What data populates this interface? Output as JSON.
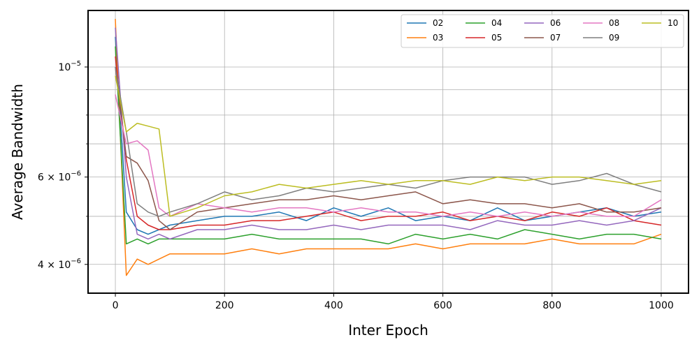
{
  "chart_data": {
    "type": "line",
    "title": "",
    "xlabel": "Inter Epoch",
    "ylabel": "Average Bandwidth",
    "xlim": [
      -50,
      1050
    ],
    "ylim": [
      3.5e-06,
      1.3e-05
    ],
    "yscale": "log",
    "grid": true,
    "legend_position": "top-right",
    "legend_columns": 5,
    "x_ticks": [
      {
        "value": 0,
        "label": "0"
      },
      {
        "value": 200,
        "label": "200"
      },
      {
        "value": 400,
        "label": "400"
      },
      {
        "value": 600,
        "label": "600"
      },
      {
        "value": 800,
        "label": "800"
      },
      {
        "value": 1000,
        "label": "1000"
      }
    ],
    "y_ticks": [
      {
        "value": 4e-06,
        "base": "4 × 10",
        "exp": "−6"
      },
      {
        "value": 6e-06,
        "base": "6 × 10",
        "exp": "−6"
      },
      {
        "value": 1e-05,
        "base": "10",
        "exp": "−5"
      }
    ],
    "y_minor_ticks": [
      5e-06,
      7e-06,
      8e-06,
      9e-06
    ],
    "x": [
      0,
      20,
      40,
      60,
      80,
      100,
      150,
      200,
      250,
      300,
      350,
      400,
      450,
      500,
      550,
      600,
      650,
      700,
      750,
      800,
      850,
      900,
      950,
      1000
    ],
    "series": [
      {
        "name": "02",
        "color": "#1f77b4",
        "values": [
          1.15e-05,
          5.1e-06,
          4.7e-06,
          4.6e-06,
          4.7e-06,
          4.8e-06,
          4.9e-06,
          5e-06,
          5e-06,
          5.1e-06,
          4.9e-06,
          5.2e-06,
          5e-06,
          5.2e-06,
          4.9e-06,
          5e-06,
          4.9e-06,
          5.2e-06,
          4.9e-06,
          5e-06,
          5.1e-06,
          5.2e-06,
          5e-06,
          5.1e-06
        ]
      },
      {
        "name": "03",
        "color": "#ff7f0e",
        "values": [
          1.25e-05,
          3.8e-06,
          4.1e-06,
          4e-06,
          4.1e-06,
          4.2e-06,
          4.2e-06,
          4.2e-06,
          4.3e-06,
          4.2e-06,
          4.3e-06,
          4.3e-06,
          4.3e-06,
          4.3e-06,
          4.4e-06,
          4.3e-06,
          4.4e-06,
          4.4e-06,
          4.4e-06,
          4.5e-06,
          4.4e-06,
          4.4e-06,
          4.4e-06,
          4.6e-06
        ]
      },
      {
        "name": "04",
        "color": "#2ca02c",
        "values": [
          1.1e-05,
          4.4e-06,
          4.5e-06,
          4.4e-06,
          4.5e-06,
          4.5e-06,
          4.5e-06,
          4.5e-06,
          4.6e-06,
          4.5e-06,
          4.5e-06,
          4.5e-06,
          4.5e-06,
          4.4e-06,
          4.6e-06,
          4.5e-06,
          4.6e-06,
          4.5e-06,
          4.7e-06,
          4.6e-06,
          4.5e-06,
          4.6e-06,
          4.6e-06,
          4.5e-06
        ]
      },
      {
        "name": "05",
        "color": "#d62728",
        "values": [
          1.05e-05,
          6.5e-06,
          5e-06,
          4.8e-06,
          4.7e-06,
          4.7e-06,
          4.8e-06,
          4.8e-06,
          4.9e-06,
          4.9e-06,
          5e-06,
          5.1e-06,
          4.9e-06,
          5e-06,
          5e-06,
          5.1e-06,
          4.9e-06,
          5e-06,
          4.9e-06,
          5.1e-06,
          5e-06,
          5.2e-06,
          4.9e-06,
          4.8e-06
        ]
      },
      {
        "name": "06",
        "color": "#9467bd",
        "values": [
          1.2e-05,
          6e-06,
          4.6e-06,
          4.5e-06,
          4.6e-06,
          4.5e-06,
          4.7e-06,
          4.7e-06,
          4.8e-06,
          4.7e-06,
          4.7e-06,
          4.8e-06,
          4.7e-06,
          4.8e-06,
          4.8e-06,
          4.8e-06,
          4.7e-06,
          4.9e-06,
          4.8e-06,
          4.8e-06,
          4.9e-06,
          4.8e-06,
          4.9e-06,
          5.2e-06
        ]
      },
      {
        "name": "07",
        "color": "#8c564b",
        "values": [
          1e-05,
          6.6e-06,
          6.4e-06,
          5.9e-06,
          4.9e-06,
          4.7e-06,
          5.1e-06,
          5.2e-06,
          5.3e-06,
          5.4e-06,
          5.4e-06,
          5.5e-06,
          5.4e-06,
          5.5e-06,
          5.6e-06,
          5.3e-06,
          5.4e-06,
          5.3e-06,
          5.3e-06,
          5.2e-06,
          5.3e-06,
          5.1e-06,
          5.1e-06,
          5.2e-06
        ]
      },
      {
        "name": "08",
        "color": "#e377c2",
        "values": [
          8.8e-06,
          7e-06,
          7.1e-06,
          6.8e-06,
          5.2e-06,
          5e-06,
          5.3e-06,
          5.2e-06,
          5.1e-06,
          5.2e-06,
          5.2e-06,
          5.1e-06,
          5.2e-06,
          5.1e-06,
          5.1e-06,
          5e-06,
          5.1e-06,
          5e-06,
          5.1e-06,
          5e-06,
          5.1e-06,
          5e-06,
          5e-06,
          5.4e-06
        ]
      },
      {
        "name": "09",
        "color": "#7f7f7f",
        "values": [
          1e-05,
          7.4e-06,
          5.3e-06,
          5.1e-06,
          5e-06,
          5.1e-06,
          5.3e-06,
          5.6e-06,
          5.4e-06,
          5.5e-06,
          5.7e-06,
          5.6e-06,
          5.7e-06,
          5.8e-06,
          5.7e-06,
          5.9e-06,
          6e-06,
          6e-06,
          6e-06,
          5.8e-06,
          5.9e-06,
          6.1e-06,
          5.8e-06,
          5.6e-06
        ]
      },
      {
        "name": "10",
        "color": "#bcbd22",
        "values": [
          9.6e-06,
          7.4e-06,
          7.7e-06,
          7.6e-06,
          7.5e-06,
          5e-06,
          5.2e-06,
          5.5e-06,
          5.6e-06,
          5.8e-06,
          5.7e-06,
          5.8e-06,
          5.9e-06,
          5.8e-06,
          5.9e-06,
          5.9e-06,
          5.8e-06,
          6e-06,
          5.9e-06,
          6e-06,
          6e-06,
          5.9e-06,
          5.8e-06,
          5.9e-06
        ]
      }
    ]
  }
}
